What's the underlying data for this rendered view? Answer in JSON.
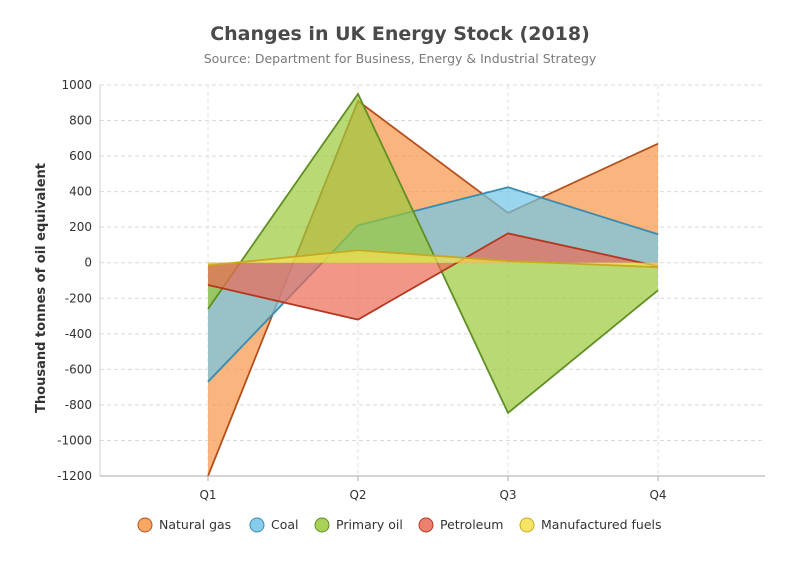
{
  "chart_data": {
    "type": "area",
    "title": "Changes in UK Energy Stock (2018)",
    "subtitle": "Source: Department for Business, Energy & Industrial Strategy",
    "xlabel": "",
    "ylabel": "Thousand tonnes of oil equivalent",
    "categories": [
      "Q1",
      "Q2",
      "Q3",
      "Q4"
    ],
    "ylim": [
      -1200,
      1000
    ],
    "yticks": [
      1000,
      800,
      600,
      400,
      200,
      0,
      -200,
      -400,
      -600,
      -800,
      -1000,
      -1200
    ],
    "grid": true,
    "legend_position": "bottom",
    "series": [
      {
        "name": "Natural gas",
        "values": [
          -1200,
          910,
          280,
          670
        ],
        "fill": "#f79646",
        "stroke": "#b5501c"
      },
      {
        "name": "Coal",
        "values": [
          -670,
          210,
          425,
          160
        ],
        "fill": "#6fc6e8",
        "stroke": "#3a8bb0"
      },
      {
        "name": "Primary oil",
        "values": [
          -260,
          950,
          -845,
          -155
        ],
        "fill": "#9bc93a",
        "stroke": "#5f8f23"
      },
      {
        "name": "Petroleum",
        "values": [
          -125,
          -320,
          165,
          -20
        ],
        "fill": "#ec6a56",
        "stroke": "#b4381f"
      },
      {
        "name": "Manufactured fuels",
        "values": [
          -15,
          70,
          10,
          -25
        ],
        "fill": "#f5e14a",
        "stroke": "#c8a820"
      }
    ]
  }
}
